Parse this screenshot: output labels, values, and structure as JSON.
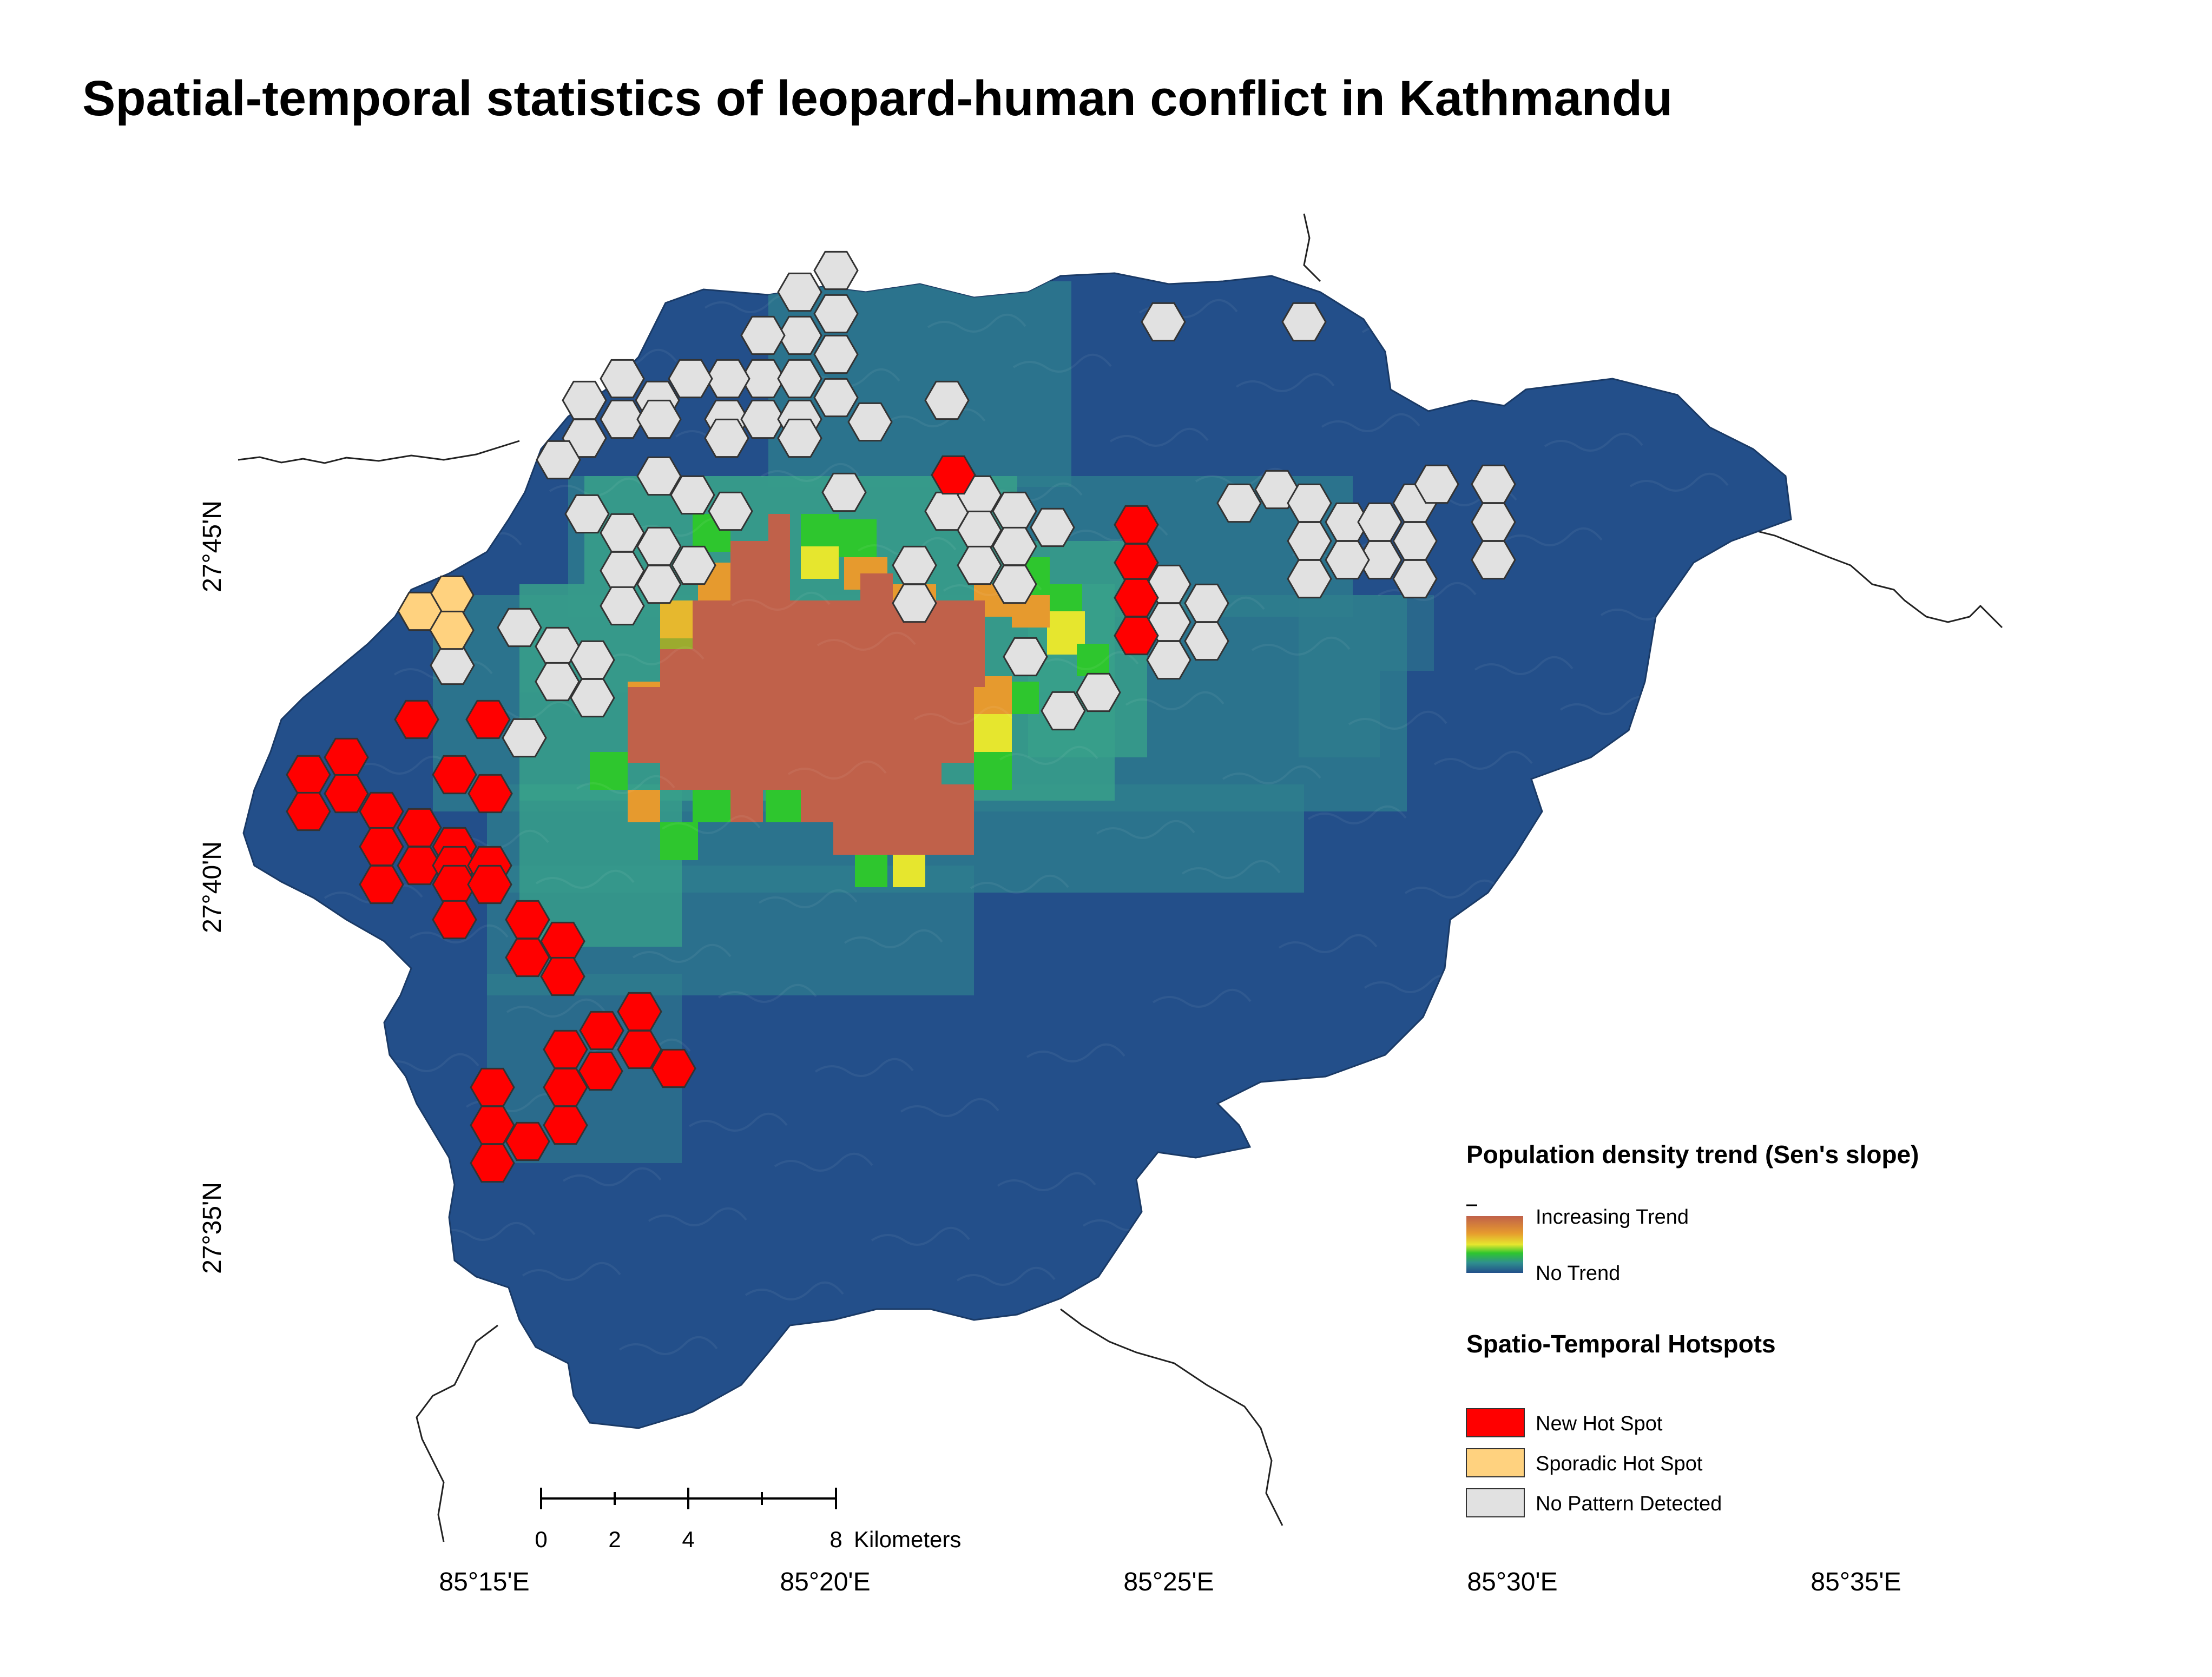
{
  "title": "Spatial-temporal statistics of leopard-human conflict in Kathmandu",
  "axes": {
    "longitude_labels": [
      "85°15'E",
      "85°20'E",
      "85°25'E",
      "85°30'E",
      "85°35'E"
    ],
    "latitude_labels": [
      "27°45'N",
      "27°40'N",
      "27°35'N"
    ]
  },
  "scale_bar": {
    "ticks": [
      "0",
      "2",
      "4",
      "8"
    ],
    "unit": "Kilometers"
  },
  "legend": {
    "density_heading": "Population density trend (Sen's slope)",
    "density_high": "Increasing Trend",
    "density_low": "No Trend",
    "hotspot_heading": "Spatio-Temporal Hotspots",
    "items": [
      {
        "label": "New Hot Spot",
        "color": "#ff0000"
      },
      {
        "label": "Sporadic Hot Spot",
        "color": "#ffd27f"
      },
      {
        "label": "No Pattern Detected",
        "color": "#e1e1e1"
      }
    ]
  },
  "colors": {
    "base_terrain": "#234f8a",
    "low_teal": "#2f7f8e",
    "mid_teal": "#38a08a",
    "green": "#2ec62e",
    "yellow": "#e6e62e",
    "orange": "#e69a2e",
    "core": "#c0614a"
  }
}
